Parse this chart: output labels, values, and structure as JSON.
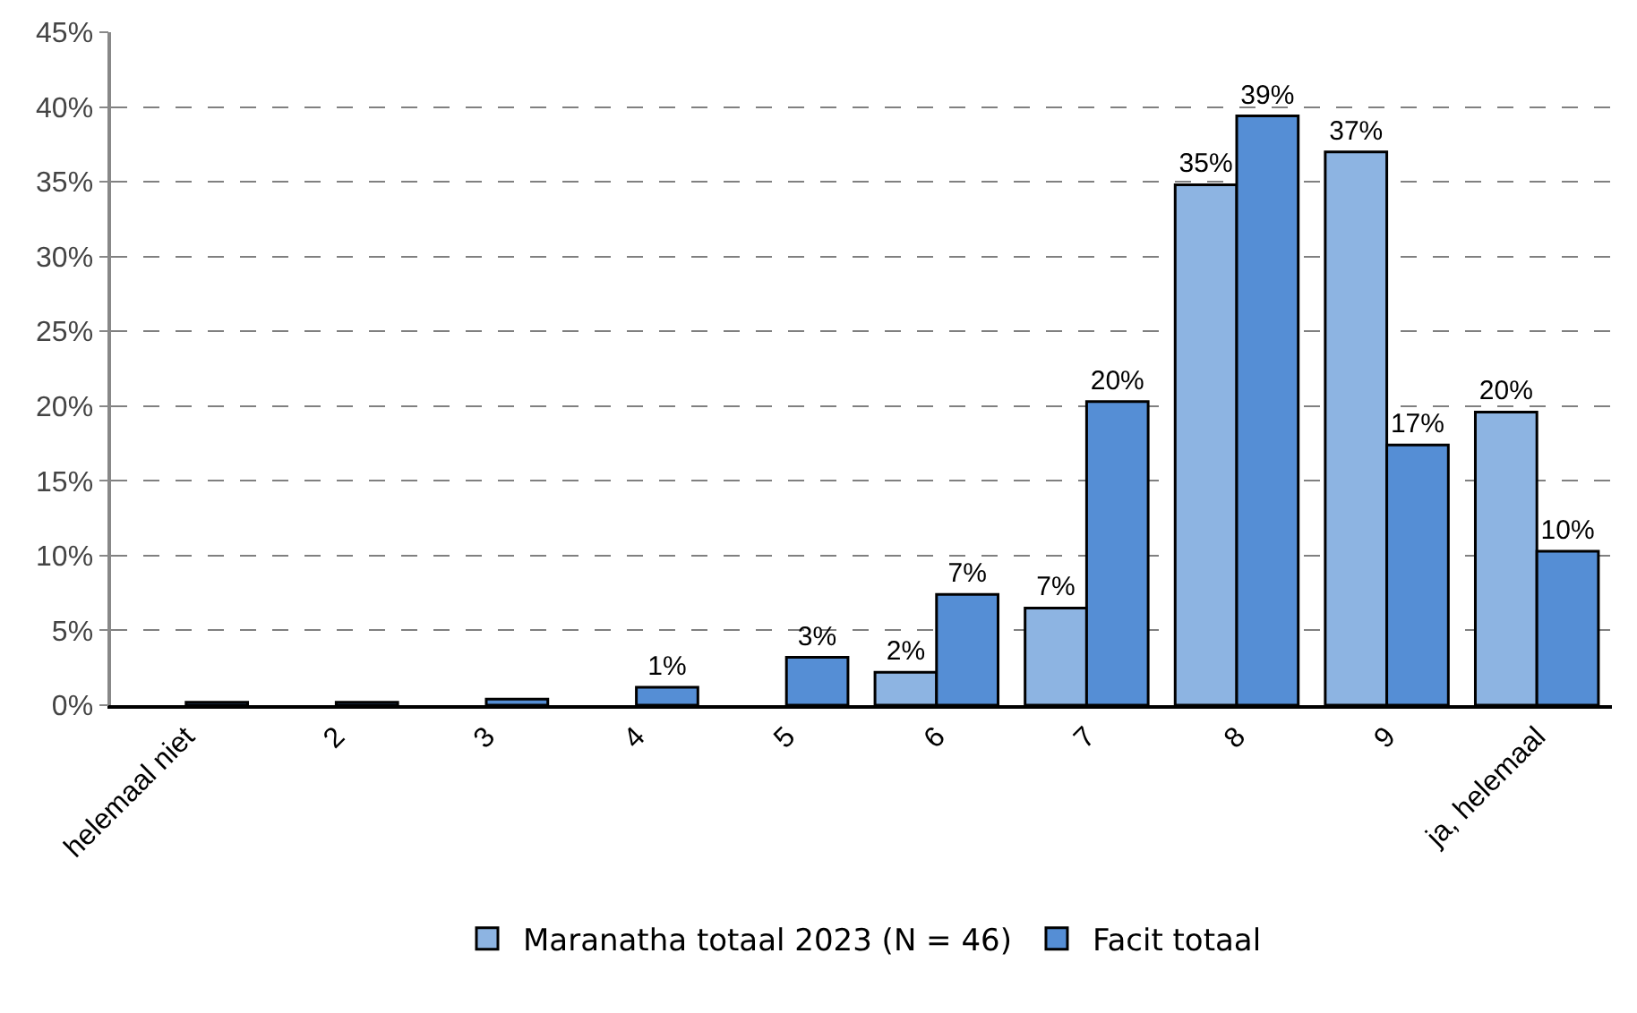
{
  "chart_data": {
    "type": "bar",
    "categories": [
      "helemaal niet",
      "2",
      "3",
      "4",
      "5",
      "6",
      "7",
      "8",
      "9",
      "ja, helemaal"
    ],
    "series": [
      {
        "name": "Maranatha totaal 2023 (N = 46)",
        "color": "#8db4e2",
        "values": [
          null,
          null,
          null,
          null,
          null,
          2.2,
          6.5,
          34.8,
          37.0,
          19.6
        ],
        "value_labels": [
          null,
          null,
          null,
          null,
          null,
          "2%",
          "7%",
          "35%",
          "37%",
          "20%"
        ]
      },
      {
        "name": "Facit totaal",
        "color": "#558ed5",
        "values": [
          0.2,
          0.2,
          0.4,
          1.2,
          3.2,
          7.4,
          20.3,
          39.4,
          17.4,
          10.3
        ],
        "value_labels": [
          null,
          null,
          null,
          "1%",
          "3%",
          "7%",
          "20%",
          "39%",
          "17%",
          "10%"
        ]
      }
    ],
    "ylim": [
      0,
      45
    ],
    "yticks": [
      {
        "value": 0,
        "label": "0%"
      },
      {
        "value": 5,
        "label": "5%"
      },
      {
        "value": 10,
        "label": "10%"
      },
      {
        "value": 15,
        "label": "15%"
      },
      {
        "value": 20,
        "label": "20%"
      },
      {
        "value": 25,
        "label": "25%"
      },
      {
        "value": 30,
        "label": "30%"
      },
      {
        "value": 35,
        "label": "35%"
      },
      {
        "value": 40,
        "label": "40%"
      },
      {
        "value": 45,
        "label": "45%"
      }
    ],
    "grid": "y",
    "line_style": "dashed",
    "legend": "bottom"
  }
}
